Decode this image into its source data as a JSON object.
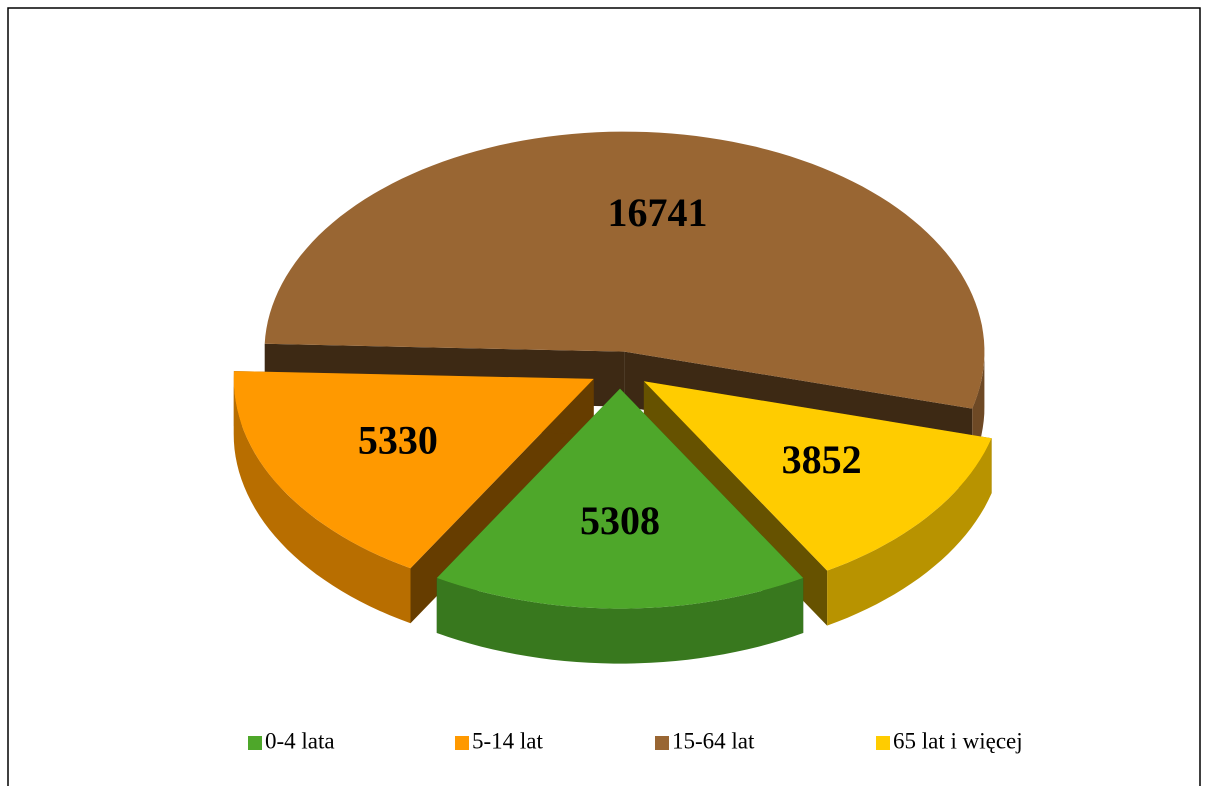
{
  "chart_data": {
    "type": "pie3d",
    "categories": [
      "0-4 lata",
      "5-14 lat",
      "15-64 lat",
      "65 lat i więcej"
    ],
    "values": [
      5308,
      5330,
      16741,
      3852
    ],
    "colors": [
      "#4ea72a",
      "#ff9900",
      "#996633",
      "#ffcc00"
    ],
    "legend": "bottom"
  }
}
